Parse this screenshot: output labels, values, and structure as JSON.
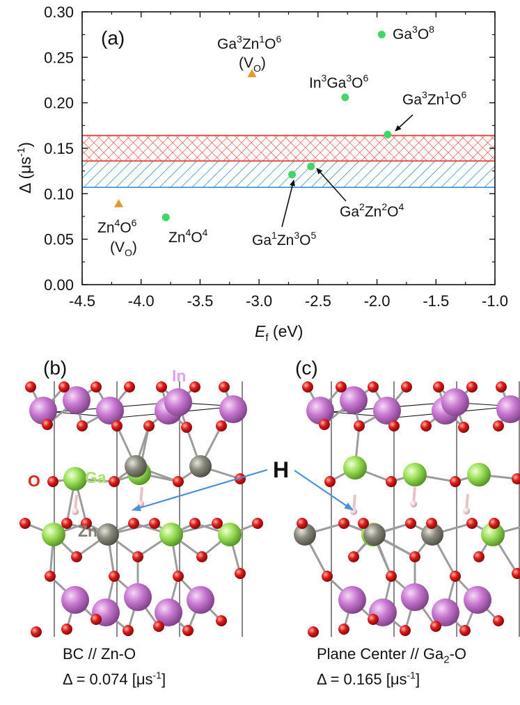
{
  "chart_data": {
    "type": "scatter",
    "panel_label": "(a)",
    "xlabel_italic": "E",
    "xlabel_sub": "f",
    "xlabel_rest": " (eV)",
    "ylabel": "Δ (μs",
    "ylabel_sup": "-1",
    "ylabel_close": ")",
    "xlim": [
      -4.5,
      -1.0
    ],
    "ylim": [
      0.0,
      0.3
    ],
    "xticks": [
      "-4.5",
      "-4.0",
      "-3.5",
      "-3.0",
      "-2.5",
      "-2.0",
      "-1.5",
      "-1.0"
    ],
    "yticks": [
      "0.00",
      "0.05",
      "0.10",
      "0.15",
      "0.20",
      "0.25",
      "0.30"
    ],
    "bands": [
      {
        "name": "blue hatched band",
        "y0": 0.107,
        "y1": 0.162,
        "color": "#3b8fd8"
      },
      {
        "name": "red crosshatched band",
        "y0": 0.136,
        "y1": 0.164,
        "color": "#e8443a"
      }
    ],
    "points": [
      {
        "x": -1.96,
        "y": 0.275,
        "marker": "circle",
        "color": "#44d46a",
        "label": [
          "Ga",
          "3",
          "O",
          "8"
        ]
      },
      {
        "x": -2.27,
        "y": 0.206,
        "marker": "circle",
        "color": "#44d46a",
        "label": [
          "In",
          "3",
          "Ga",
          "3",
          "O",
          "6"
        ]
      },
      {
        "x": -1.91,
        "y": 0.165,
        "marker": "circle",
        "color": "#44d46a",
        "label": [
          "Ga",
          "3",
          "Zn",
          "1",
          "O",
          "6"
        ]
      },
      {
        "x": -2.56,
        "y": 0.13,
        "marker": "circle",
        "color": "#44d46a",
        "label": [
          "Ga",
          "2",
          "Zn",
          "2",
          "O",
          "4"
        ]
      },
      {
        "x": -2.72,
        "y": 0.121,
        "marker": "circle",
        "color": "#44d46a",
        "label": [
          "Ga",
          "1",
          "Zn",
          "3",
          "O",
          "5"
        ]
      },
      {
        "x": -3.79,
        "y": 0.074,
        "marker": "circle",
        "color": "#44d46a",
        "label": [
          "Zn",
          "4",
          "O",
          "4"
        ]
      },
      {
        "x": -3.06,
        "y": 0.232,
        "marker": "triangle",
        "color": "#e8962a",
        "label": [
          "Ga",
          "3",
          "Zn",
          "1",
          "O",
          "6"
        ],
        "note": "(V",
        "note_sub": "O",
        "note_end": ")"
      },
      {
        "x": -4.19,
        "y": 0.089,
        "marker": "triangle",
        "color": "#e8962a",
        "label": [
          "Zn",
          "4",
          "O",
          "6"
        ],
        "note": "(V",
        "note_sub": "O",
        "note_end": ")"
      }
    ]
  },
  "structures": {
    "b": {
      "panel_label": "(b)",
      "label_in": "In",
      "label_ga": "Ga",
      "label_o": "O",
      "label_zn": "Zn",
      "caption_line1": "BC // Zn-O",
      "caption_line2": "Δ = 0.074 [μs-1]"
    },
    "c": {
      "panel_label": "(c)",
      "caption_line1": "Plane Center // Ga2-O",
      "caption_line2": "Δ = 0.165 [μs-1]"
    },
    "h_label": "H",
    "colors": {
      "in": "#c97ad1",
      "ga": "#9ee05a",
      "zn": "#8a8a7e",
      "o": "#e01b1b",
      "h": "#f2c8cf",
      "arrow": "#4a90d9"
    }
  }
}
